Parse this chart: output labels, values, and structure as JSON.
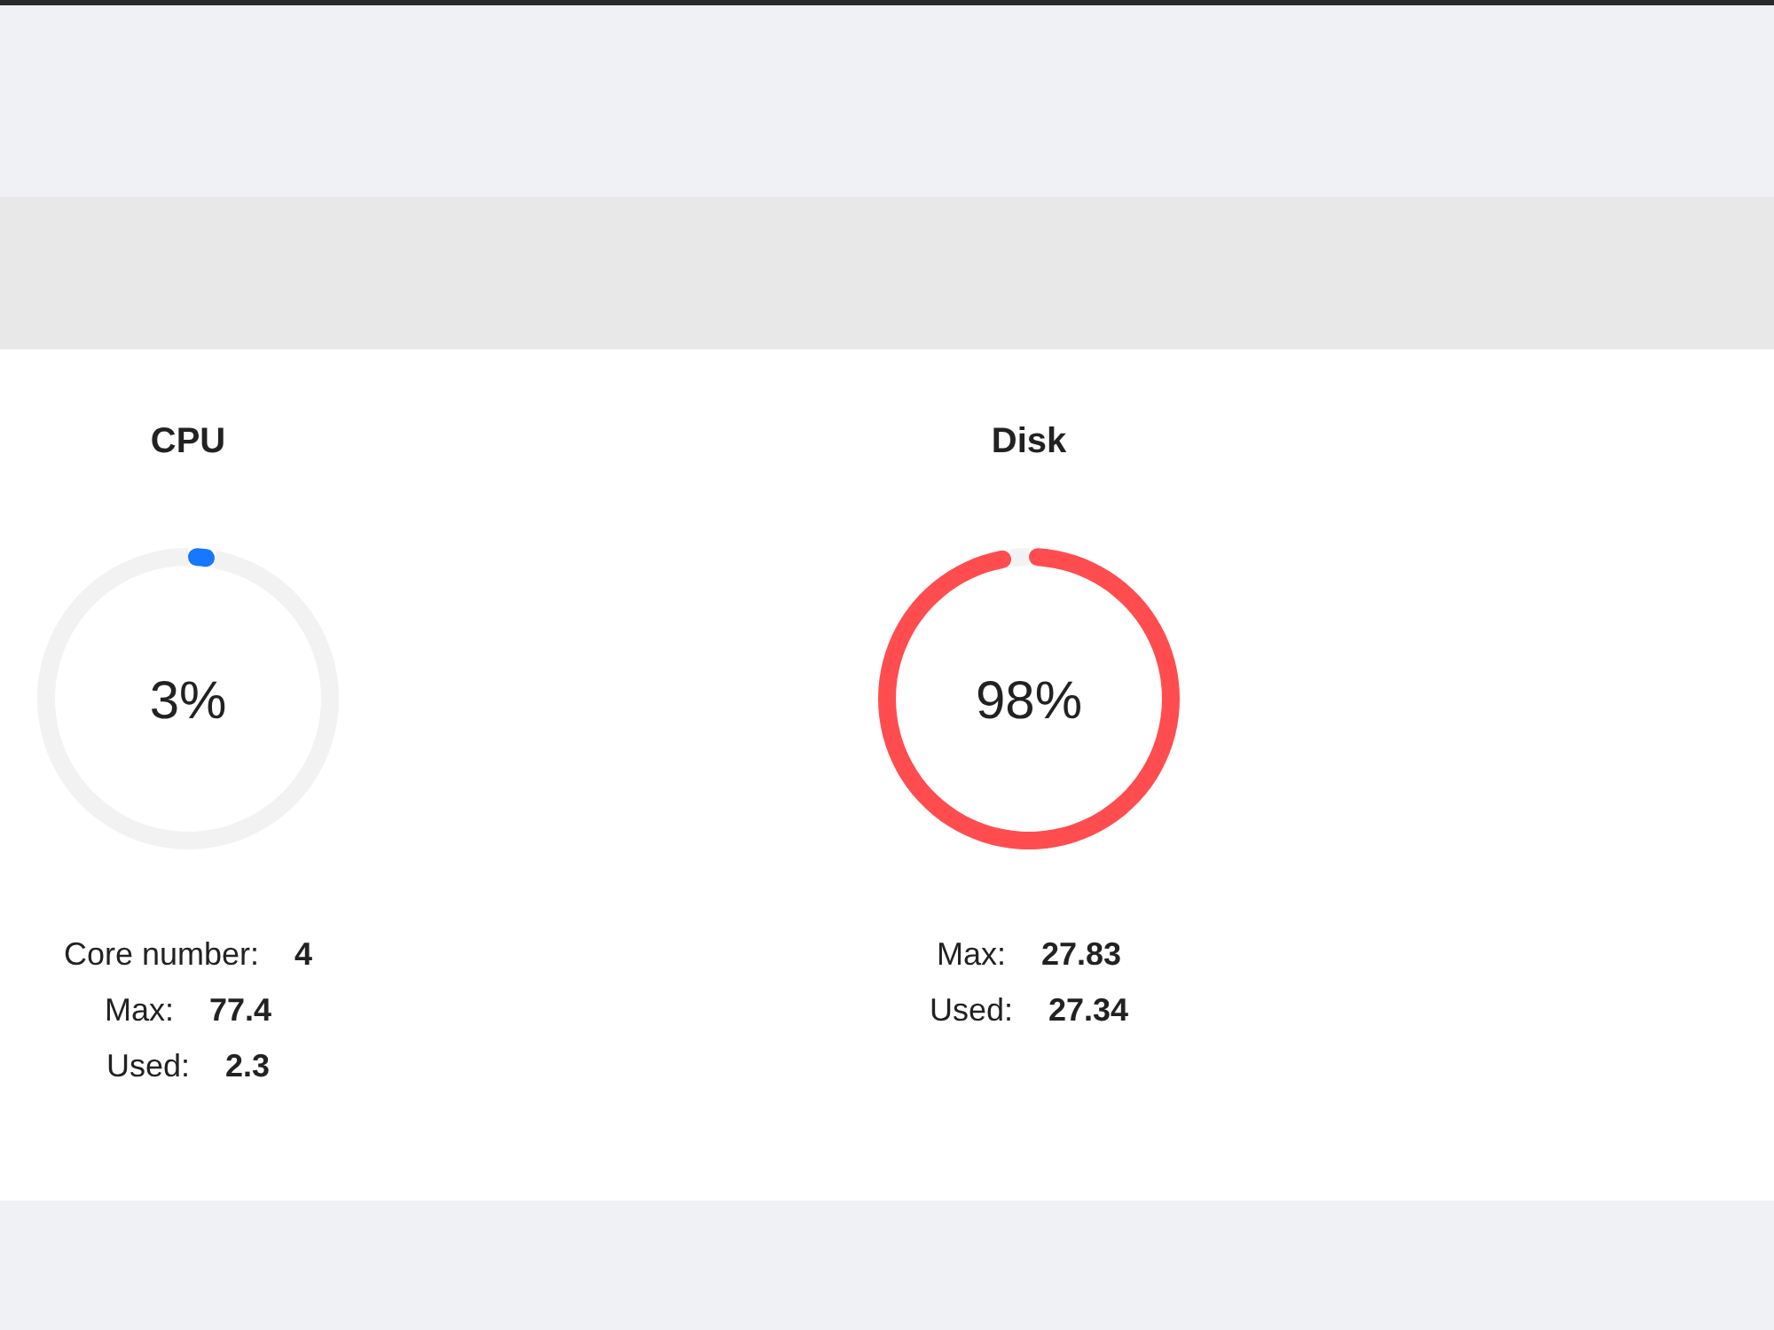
{
  "chart_data": [
    {
      "type": "donut",
      "title": "CPU",
      "categories": [
        null,
        null
      ],
      "values": [
        3,
        97
      ],
      "colors": [
        "#1677ff",
        "#f2f2f2"
      ],
      "annotations": [
        "3%",
        "Core number:",
        "4",
        "Max:",
        "77.4",
        "Used:",
        "2.3"
      ]
    },
    {
      "type": "donut",
      "title": "Disk",
      "categories": [
        null,
        null
      ],
      "values": [
        98,
        2
      ],
      "colors": [
        "#ff4d4f",
        "#f2f2f2"
      ],
      "annotations": [
        "98%",
        "Max:",
        "27.83",
        "Used:",
        "27.34"
      ]
    }
  ]
}
